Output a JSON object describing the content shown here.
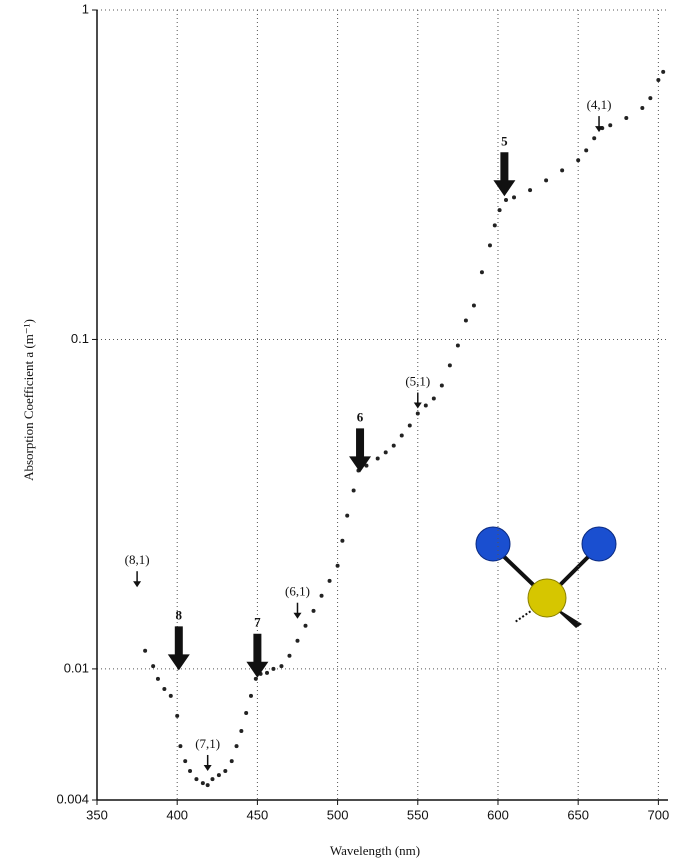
{
  "chart_data": {
    "type": "scatter",
    "x_label": "Wavelength (nm)",
    "y_label": "Absorption Coefficient a (m⁻¹)",
    "color": "#222222",
    "log_y": true,
    "grid": true,
    "xlim": [
      350,
      706
    ],
    "ylim": [
      0.004,
      1
    ],
    "xticks": [
      350,
      400,
      450,
      500,
      550,
      600,
      650,
      700
    ],
    "yticks": [
      0.004,
      0.01,
      0.1,
      1
    ],
    "x": [
      380,
      385,
      388,
      392,
      396,
      400,
      402,
      405,
      408,
      412,
      416,
      419,
      422,
      426,
      430,
      434,
      437,
      440,
      443,
      446,
      449,
      452,
      456,
      460,
      465,
      470,
      475,
      480,
      485,
      490,
      495,
      500,
      503,
      506,
      510,
      513,
      518,
      525,
      530,
      535,
      540,
      545,
      550,
      555,
      560,
      565,
      570,
      575,
      580,
      585,
      590,
      595,
      598,
      601,
      605,
      610,
      620,
      630,
      640,
      650,
      655,
      660,
      665,
      670,
      680,
      690,
      695,
      700,
      703
    ],
    "values": [
      0.01135,
      0.0102,
      0.00933,
      0.00869,
      0.00828,
      0.0072,
      0.00583,
      0.00525,
      0.0049,
      0.00463,
      0.0045,
      0.00444,
      0.00463,
      0.00476,
      0.0049,
      0.00525,
      0.00583,
      0.00648,
      0.00735,
      0.00828,
      0.00933,
      0.00966,
      0.00973,
      0.01,
      0.0102,
      0.01096,
      0.01217,
      0.01352,
      0.015,
      0.01667,
      0.0185,
      0.02056,
      0.0245,
      0.0292,
      0.0348,
      0.04,
      0.0414,
      0.0435,
      0.0454,
      0.0476,
      0.0511,
      0.0548,
      0.0596,
      0.063,
      0.0662,
      0.0725,
      0.0834,
      0.0959,
      0.1142,
      0.1268,
      0.16,
      0.193,
      0.222,
      0.247,
      0.265,
      0.27,
      0.284,
      0.304,
      0.326,
      0.35,
      0.375,
      0.408,
      0.438,
      0.447,
      0.47,
      0.504,
      0.54,
      0.613,
      0.649
    ],
    "major_annotations": [
      {
        "text": "8",
        "x": 401,
        "y": 0.0099
      },
      {
        "text": "7",
        "x": 450,
        "y": 0.0094
      },
      {
        "text": "6",
        "x": 514,
        "y": 0.0395
      },
      {
        "text": "5",
        "x": 604,
        "y": 0.272
      }
    ],
    "minor_annotations": [
      {
        "text": "(8,1)",
        "x": 375,
        "y": 0.0177
      },
      {
        "text": "(7,1)",
        "x": 419,
        "y": 0.0049
      },
      {
        "text": "(6,1)",
        "x": 475,
        "y": 0.0142
      },
      {
        "text": "(5,1)",
        "x": 550,
        "y": 0.0617
      },
      {
        "text": "(4,1)",
        "x": 663,
        "y": 0.426
      }
    ]
  }
}
